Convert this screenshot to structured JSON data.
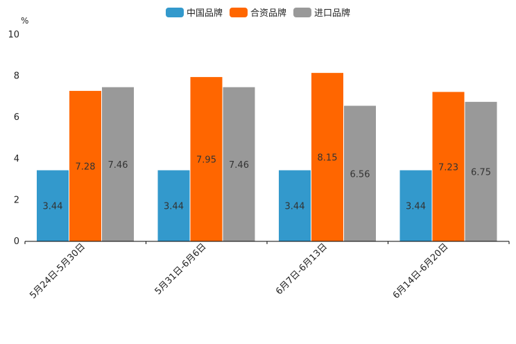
{
  "chart_data": {
    "type": "bar",
    "title": "",
    "unit_label": "%",
    "xlabel": "",
    "ylabel": "%",
    "ylim": [
      0,
      10
    ],
    "yticks": [
      0,
      2,
      4,
      6,
      8,
      10
    ],
    "categories": [
      "5月24日-5月30日",
      "5月31日-6月6日",
      "6月7日-6月13日",
      "6月14日-6月20日"
    ],
    "series": [
      {
        "name": "中国品牌",
        "color": "#3399cc",
        "values": [
          3.44,
          3.44,
          3.44,
          3.44
        ]
      },
      {
        "name": "合资品牌",
        "color": "#ff6600",
        "values": [
          7.28,
          7.95,
          8.15,
          7.23
        ]
      },
      {
        "name": "进口品牌",
        "color": "#999999",
        "values": [
          7.46,
          7.46,
          6.56,
          6.75
        ]
      }
    ],
    "legend_position": "top-center",
    "grid": false
  }
}
